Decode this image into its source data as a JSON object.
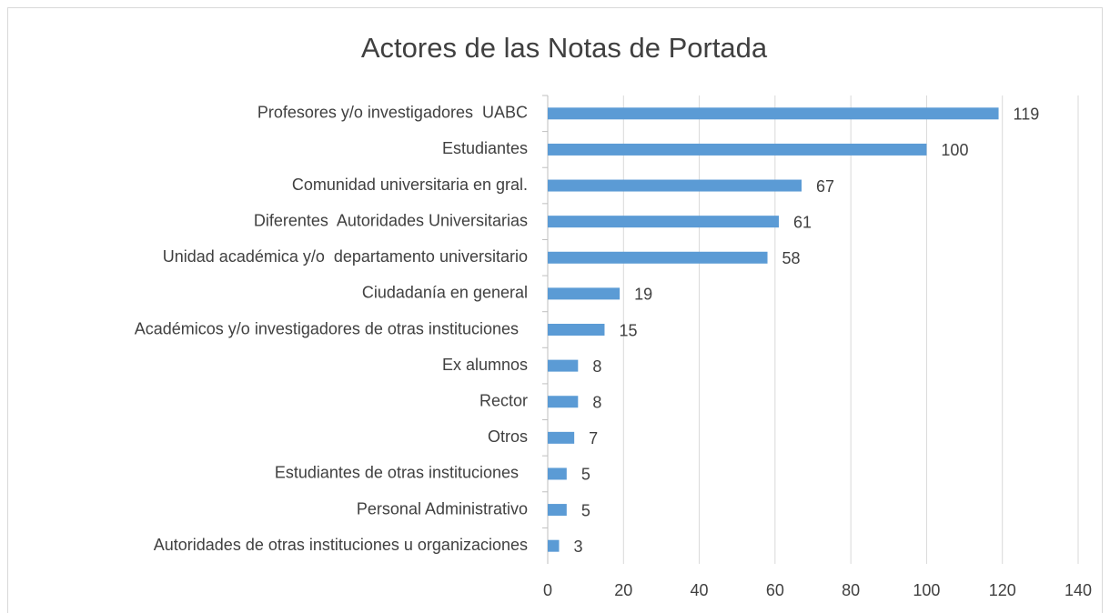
{
  "chart_data": {
    "type": "bar",
    "orientation": "horizontal",
    "title": "Actores de las Notas de Portada",
    "categories": [
      "Profesores y/o investigadores  UABC",
      "Estudiantes",
      "Comunidad universitaria en gral.",
      "Diferentes  Autoridades Universitarias",
      "Unidad académica y/o  departamento universitario",
      "Ciudadanía en general",
      "Académicos y/o investigadores de otras instituciones  ",
      "Ex alumnos",
      "Rector",
      "Otros",
      "Estudiantes de otras instituciones  ",
      "Personal Administrativo",
      "Autoridades de otras instituciones u organizaciones"
    ],
    "values": [
      119,
      100,
      67,
      61,
      58,
      19,
      15,
      8,
      8,
      7,
      5,
      5,
      3
    ],
    "color": "#5b9bd5",
    "xlim": [
      0,
      140
    ],
    "xticks": [
      0,
      20,
      40,
      60,
      80,
      100,
      120,
      140
    ],
    "grid": true
  }
}
